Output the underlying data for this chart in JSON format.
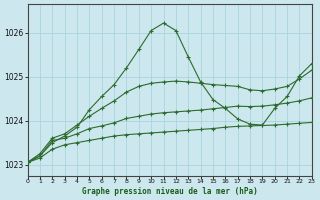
{
  "title": "Graphe pression niveau de la mer (hPa)",
  "bg_color": "#cce8ee",
  "grid_color": "#aad4dd",
  "line_color": "#2d6a2d",
  "xlim": [
    0,
    23
  ],
  "ylim": [
    1022.75,
    1026.65
  ],
  "yticks": [
    1023,
    1024,
    1025,
    1026
  ],
  "xticks": [
    0,
    1,
    2,
    3,
    4,
    5,
    6,
    7,
    8,
    9,
    10,
    11,
    12,
    13,
    14,
    15,
    16,
    17,
    18,
    19,
    20,
    21,
    22,
    23
  ],
  "line1_x": [
    0,
    1,
    2,
    3,
    4,
    5,
    6,
    7,
    8,
    9,
    10,
    11,
    12,
    13,
    14,
    15,
    16,
    17,
    18,
    19,
    20,
    21,
    22,
    23
  ],
  "line1_y": [
    1023.05,
    1023.15,
    1023.35,
    1023.45,
    1023.5,
    1023.55,
    1023.6,
    1023.65,
    1023.68,
    1023.7,
    1023.72,
    1023.74,
    1023.76,
    1023.78,
    1023.8,
    1023.82,
    1023.85,
    1023.87,
    1023.88,
    1023.89,
    1023.9,
    1023.92,
    1023.94,
    1023.96
  ],
  "line2_x": [
    0,
    1,
    2,
    3,
    4,
    5,
    6,
    7,
    8,
    9,
    10,
    11,
    12,
    13,
    14,
    15,
    16,
    17,
    18,
    19,
    20,
    21,
    22,
    23
  ],
  "line2_y": [
    1023.05,
    1023.2,
    1023.55,
    1023.6,
    1023.7,
    1023.82,
    1023.88,
    1023.95,
    1024.05,
    1024.1,
    1024.15,
    1024.18,
    1024.2,
    1024.22,
    1024.24,
    1024.27,
    1024.3,
    1024.33,
    1024.32,
    1024.33,
    1024.36,
    1024.4,
    1024.45,
    1024.52
  ],
  "line3_x": [
    0,
    1,
    2,
    3,
    4,
    5,
    6,
    7,
    8,
    9,
    10,
    11,
    12,
    13,
    14,
    15,
    16,
    17,
    18,
    19,
    20,
    21,
    22,
    23
  ],
  "line3_y": [
    1023.05,
    1023.25,
    1023.6,
    1023.7,
    1023.9,
    1024.1,
    1024.28,
    1024.45,
    1024.65,
    1024.78,
    1024.85,
    1024.88,
    1024.9,
    1024.88,
    1024.85,
    1024.82,
    1024.8,
    1024.78,
    1024.7,
    1024.68,
    1024.72,
    1024.78,
    1024.95,
    1025.15
  ],
  "line4_x": [
    0,
    1,
    2,
    3,
    4,
    5,
    6,
    7,
    8,
    9,
    10,
    11,
    12,
    13,
    14,
    15,
    16,
    17,
    18,
    19,
    20,
    21,
    22,
    23
  ],
  "line4_y": [
    1023.05,
    1023.2,
    1023.5,
    1023.65,
    1023.85,
    1024.25,
    1024.55,
    1024.82,
    1025.2,
    1025.62,
    1026.05,
    1026.22,
    1026.05,
    1025.45,
    1024.88,
    1024.48,
    1024.28,
    1024.04,
    1023.92,
    1023.9,
    1024.28,
    1024.55,
    1025.02,
    1025.3
  ],
  "markersize": 3.0,
  "linewidth": 0.8
}
